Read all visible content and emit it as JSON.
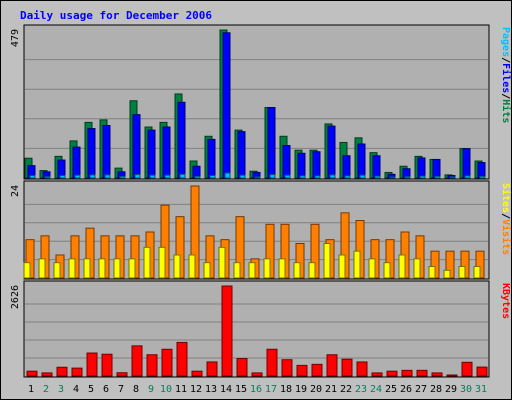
{
  "chart_data": {
    "type": "bar",
    "title": "Daily usage for December 2006",
    "categories": [
      "1",
      "2",
      "3",
      "4",
      "5",
      "6",
      "7",
      "8",
      "9",
      "10",
      "11",
      "12",
      "13",
      "14",
      "15",
      "16",
      "17",
      "18",
      "19",
      "20",
      "21",
      "22",
      "23",
      "24",
      "25",
      "26",
      "27",
      "28",
      "29",
      "30",
      "31"
    ],
    "weekend_days": [
      "2",
      "3",
      "9",
      "10",
      "16",
      "17",
      "23",
      "24",
      "30",
      "31"
    ],
    "panels": [
      {
        "id": "top",
        "max_label": "479",
        "ylim": [
          0,
          479
        ],
        "legend": [
          "Pages",
          "/",
          "Files",
          "/",
          "Hits"
        ],
        "series": [
          {
            "name": "Hits",
            "color": "#008040",
            "values": [
              64,
              24,
              70,
              120,
              180,
              188,
              32,
              250,
              165,
              180,
              272,
              55,
              135,
              479,
              155,
              22,
              228,
              135,
              90,
              90,
              175,
              115,
              130,
              82,
              18,
              38,
              70,
              60,
              10,
              95,
              55
            ]
          },
          {
            "name": "Files",
            "color": "#0000ff",
            "values": [
              40,
              20,
              58,
              100,
              160,
              170,
              20,
              205,
              155,
              165,
              245,
              38,
              125,
              470,
              150,
              18,
              228,
              105,
              80,
              85,
              168,
              72,
              110,
              72,
              12,
              30,
              65,
              60,
              8,
              95,
              50
            ]
          },
          {
            "name": "Pages",
            "color": "#00c0ff",
            "values": [
              8,
              4,
              8,
              9,
              10,
              10,
              5,
              11,
              9,
              9,
              12,
              5,
              8,
              16,
              9,
              3,
              11,
              9,
              7,
              7,
              10,
              7,
              9,
              6,
              3,
              4,
              6,
              5,
              2,
              7,
              5
            ]
          }
        ]
      },
      {
        "id": "mid",
        "max_label": "24",
        "ylim": [
          0,
          24
        ],
        "legend": [
          "Sites",
          "/",
          "Visits"
        ],
        "series": [
          {
            "name": "Visits",
            "color": "#ff8000",
            "values": [
              10,
              11,
              6,
              11,
              13,
              11,
              11,
              11,
              12,
              19,
              16,
              24,
              11,
              10,
              16,
              5,
              14,
              14,
              9,
              14,
              10,
              17,
              15,
              10,
              10,
              12,
              11,
              7,
              7,
              7,
              7
            ]
          },
          {
            "name": "Sites",
            "color": "#ffff00",
            "values": [
              4,
              5,
              4,
              5,
              5,
              5,
              5,
              5,
              8,
              8,
              6,
              6,
              4,
              8,
              4,
              4,
              5,
              5,
              4,
              4,
              9,
              6,
              7,
              5,
              4,
              6,
              5,
              3,
              2,
              3,
              3
            ]
          }
        ]
      },
      {
        "id": "bot",
        "max_label": "2626",
        "ylim": [
          0,
          2626
        ],
        "legend": [
          "KBytes"
        ],
        "series": [
          {
            "name": "KBytes",
            "color": "#ff0000",
            "values": [
              140,
              90,
              255,
              230,
              670,
              635,
              95,
              880,
              620,
              780,
              980,
              140,
              410,
              2626,
              510,
              90,
              780,
              475,
              310,
              340,
              620,
              490,
              410,
              90,
              140,
              165,
              165,
              90,
              20,
              400,
              260
            ]
          }
        ]
      }
    ],
    "colors": {
      "background": "#c0c0c0",
      "plot": "#b0b0b0",
      "frame": "#000000",
      "gridline": "#808080",
      "title": "#0000ff",
      "weekday_label": "#000000",
      "weekend_label": "#00805c"
    }
  }
}
